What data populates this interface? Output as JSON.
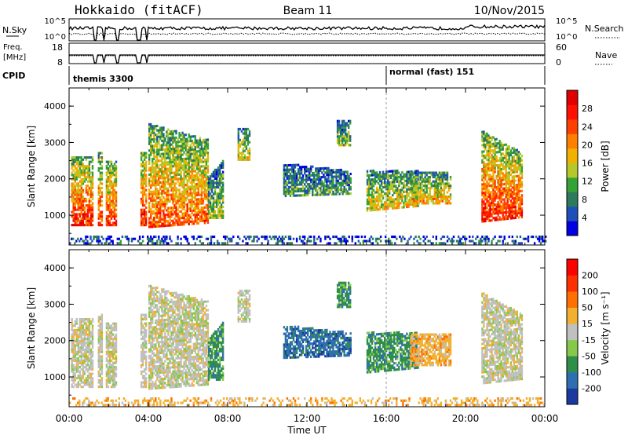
{
  "header": {
    "title": "Hokkaido (fitACF)",
    "beam": "Beam 11",
    "date": "10/Nov/2015"
  },
  "summary": {
    "nsky_label": "N.Sky",
    "nsky_ticks": [
      "10^5",
      "10^0"
    ],
    "nsearch_label": "N.Search",
    "nsearch_ticks": [
      "10^5",
      "10^0"
    ],
    "freq_label_1": "Freq.",
    "freq_label_2": "[MHz]",
    "freq_ticks": [
      "18",
      "8"
    ],
    "nave_label": "Nave",
    "nave_ticks": [
      "60",
      "0"
    ],
    "cpid_label": "CPID",
    "cpid_1": "themis 3300",
    "cpid_2": "normal (fast) 151"
  },
  "chart_data": [
    {
      "type": "heatmap",
      "name": "power-panel",
      "ylabel": "Slant Range [km]",
      "yticks": [
        "4000",
        "3000",
        "2000",
        "1000"
      ],
      "y_values": [
        4000,
        3000,
        2000,
        1000
      ],
      "ylim": [
        180,
        4500
      ],
      "xlim_hours": [
        0,
        24
      ],
      "colorbar_label": "Power [dB]",
      "colorbar_ticks": [
        "28",
        "24",
        "20",
        "16",
        "12",
        "8",
        "4"
      ],
      "colorbar_colors": [
        "#0000e0",
        "#1f4fb8",
        "#2d7a5c",
        "#35a235",
        "#b5c82a",
        "#f2b000",
        "#ff8000",
        "#ff4000",
        "#ff1000",
        "#e00000"
      ]
    },
    {
      "type": "heatmap",
      "name": "velocity-panel",
      "ylabel": "Slant Range [km]",
      "yticks": [
        "4000",
        "3000",
        "2000",
        "1000"
      ],
      "y_values": [
        4000,
        3000,
        2000,
        1000
      ],
      "ylim": [
        180,
        4500
      ],
      "xlim_hours": [
        0,
        24
      ],
      "colorbar_label": "Velocity [m s⁻¹]",
      "colorbar_ticks": [
        "200",
        "100",
        "50",
        "15",
        "-15",
        "-50",
        "-100",
        "-200"
      ],
      "colorbar_colors": [
        "#1a3aa0",
        "#2e6fb0",
        "#2f8f4a",
        "#86c94a",
        "#c0c0c0",
        "#f2b030",
        "#ff7000",
        "#ff3000",
        "#ff0000"
      ]
    }
  ],
  "xaxis": {
    "ticks": [
      "00:00",
      "04:00",
      "08:00",
      "12:00",
      "16:00",
      "20:00",
      "00:00"
    ],
    "hours": [
      0,
      4,
      8,
      12,
      16,
      20,
      24
    ],
    "label": "Time UT"
  }
}
